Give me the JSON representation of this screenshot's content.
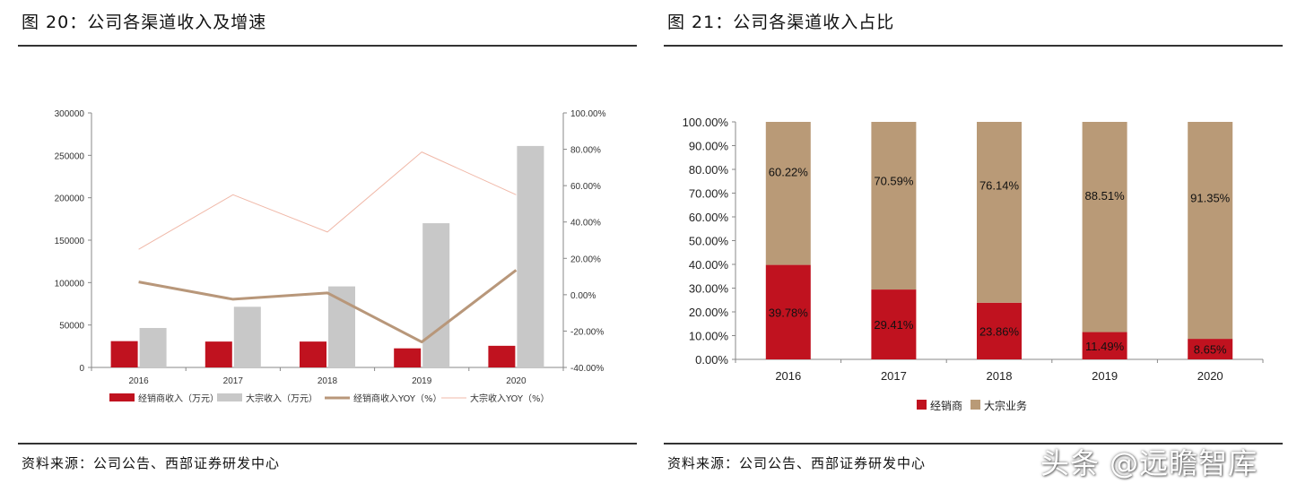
{
  "left_panel": {
    "title": "图 20：公司各渠道收入及增速",
    "source": "资料来源：公司公告、西部证券研发中心"
  },
  "right_panel": {
    "title": "图 21：公司各渠道收入占比",
    "source": "资料来源：公司公告、西部证券研发中心"
  },
  "watermark": "头条 @远瞻智库",
  "colors": {
    "dealer_bar": "#c0121f",
    "bulk_bar": "#c8c8c8",
    "dealer_line": "#b8977a",
    "bulk_line": "#f0b8a8",
    "bulk_share": "#b99a77"
  },
  "chart_data": [
    {
      "type": "bar",
      "title": "",
      "categories": [
        "2016",
        "2017",
        "2018",
        "2019",
        "2020"
      ],
      "ylim": [
        0,
        300000
      ],
      "y_ticks": [
        "300000",
        "250000",
        "200000",
        "150000",
        "100000",
        "50000",
        "0"
      ],
      "y2lim": [
        -40,
        100
      ],
      "y2_ticks": [
        "100.00%",
        "80.00%",
        "60.00%",
        "40.00%",
        "20.00%",
        "0.00%",
        "-20.00%",
        "-40.00%"
      ],
      "grid": false,
      "legend_position": "bottom",
      "series": [
        {
          "name": "经销商收入（万元）",
          "type": "bar",
          "values": [
            31000,
            30500,
            30500,
            22500,
            25500
          ]
        },
        {
          "name": "大宗收入（万元）",
          "type": "bar",
          "values": [
            46500,
            71500,
            95500,
            170000,
            261000
          ]
        },
        {
          "name": "经销商收入YOY（%）",
          "type": "line",
          "axis": "right",
          "values": [
            7,
            -2.5,
            1,
            -26,
            13.5
          ]
        },
        {
          "name": "大宗收入YOY（%）",
          "type": "line",
          "axis": "right",
          "values": [
            25,
            55,
            34.5,
            78.5,
            55
          ]
        }
      ]
    },
    {
      "type": "bar",
      "stacked": true,
      "title": "",
      "categories": [
        "2016",
        "2017",
        "2018",
        "2019",
        "2020"
      ],
      "ylim": [
        0,
        100
      ],
      "y_ticks": [
        "100.00%",
        "90.00%",
        "80.00%",
        "70.00%",
        "60.00%",
        "50.00%",
        "40.00%",
        "30.00%",
        "20.00%",
        "10.00%",
        "0.00%"
      ],
      "grid": false,
      "legend_position": "bottom",
      "series": [
        {
          "name": "经销商",
          "values": [
            39.78,
            29.41,
            23.86,
            11.49,
            8.65
          ],
          "labels": [
            "39.78%",
            "29.41%",
            "23.86%",
            "11.49%",
            "8.65%"
          ]
        },
        {
          "name": "大宗业务",
          "values": [
            60.22,
            70.59,
            76.14,
            88.51,
            91.35
          ],
          "labels": [
            "60.22%",
            "70.59%",
            "76.14%",
            "88.51%",
            "91.35%"
          ]
        }
      ]
    }
  ]
}
